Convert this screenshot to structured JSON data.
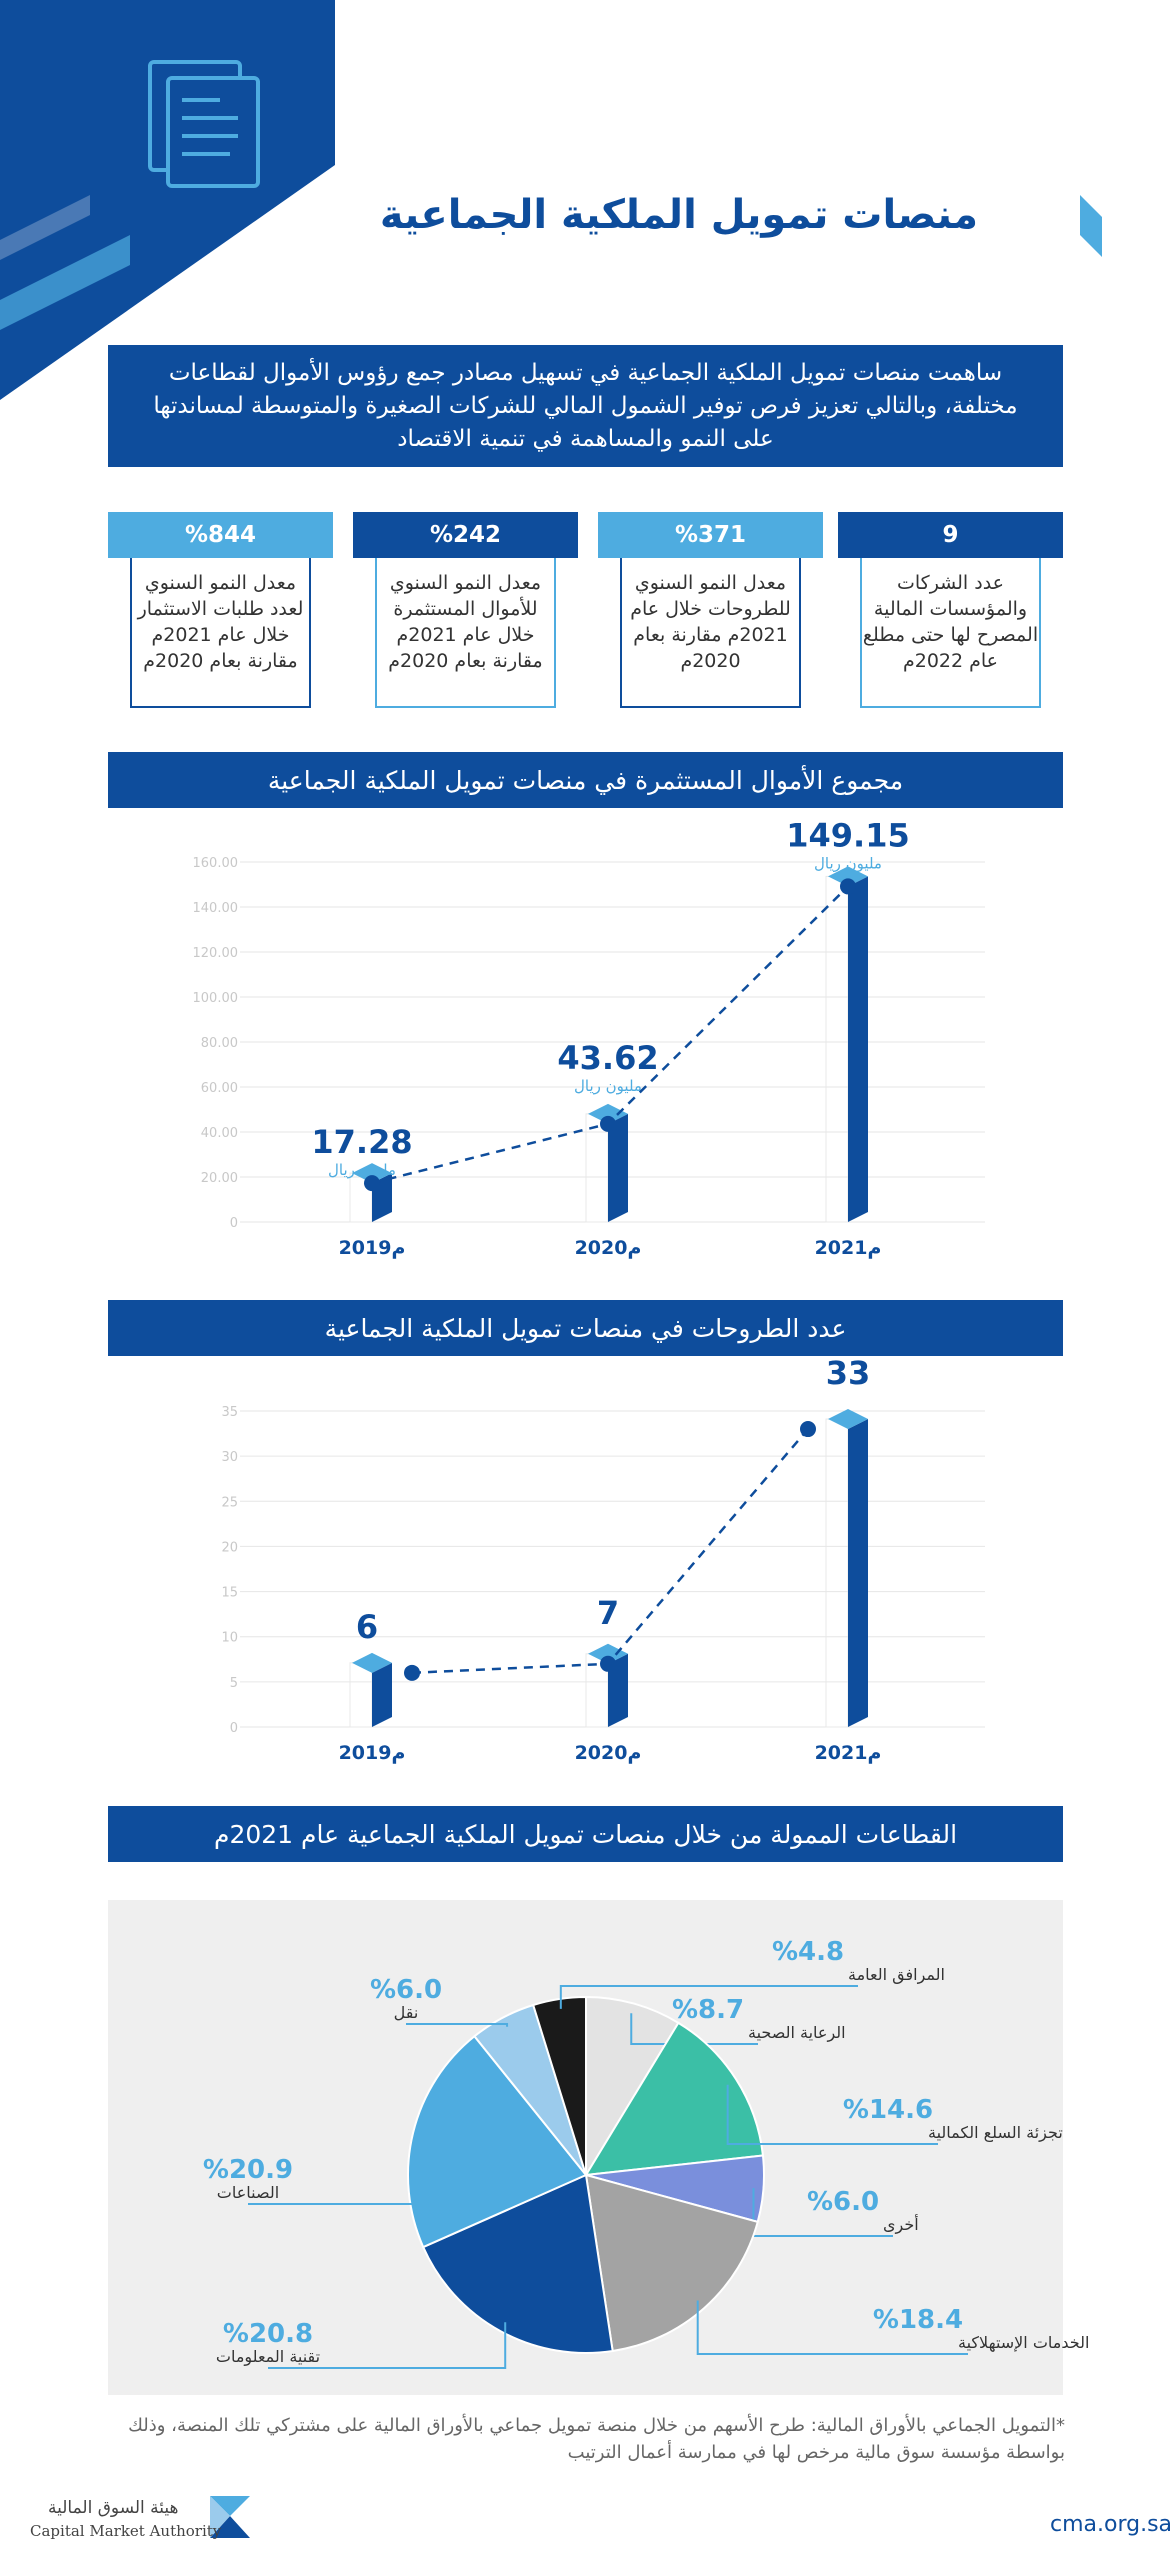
{
  "header": {
    "title": "منصات تمويل الملكية الجماعية",
    "intro": "ساهمت منصات تمويل الملكية الجماعية في تسهيل مصادر جمع رؤوس الأموال لقطاعات مختلفة، وبالتالي تعزيز فرص توفير الشمول المالي للشركات الصغيرة والمتوسطة لمساندتها على النمو والمساهمة في تنمية الاقتصاد"
  },
  "stats": [
    {
      "value": "9",
      "text": "عدد الشركات والمؤسسات المالية المصرح لها حتى مطلع عام 2022م",
      "color": "#0e4d9c"
    },
    {
      "value": "%371",
      "text": "معدل النمو السنوي للطروحات خلال عام 2021م مقارنة بعام 2020م",
      "color": "#4eace0"
    },
    {
      "value": "%242",
      "text": "معدل النمو السنوي للأموال المستثمرة خلال عام 2021م مقارنة بعام 2020م",
      "color": "#0e4d9c"
    },
    {
      "value": "%844",
      "text": "معدل النمو السنوي لعدد طلبات الاستثمار خلال عام 2021م مقارنة بعام 2020م",
      "color": "#4eace0"
    }
  ],
  "charts_titles": {
    "funds": "مجموع الأموال المستثمرة في منصات تمويل الملكية الجماعية",
    "offerings": "عدد الطروحات في منصات تمويل الملكية الجماعية",
    "sectors": "القطاعات الممولة من خلال منصات تمويل الملكية الجماعية عام 2021م"
  },
  "chart_data": [
    {
      "type": "bar",
      "title": "مجموع الأموال المستثمرة في منصات تمويل الملكية الجماعية",
      "categories": [
        "2019م",
        "2020م",
        "2021م"
      ],
      "values": [
        17.28,
        43.62,
        149.15
      ],
      "value_labels": [
        "17.28",
        "43.62",
        "149.15"
      ],
      "unit": "مليون ريال",
      "yticks": [
        "0",
        "20.00",
        "40.00",
        "60.00",
        "80.00",
        "100.00",
        "120.00",
        "140.00",
        "160.00"
      ],
      "ylim": [
        0,
        160
      ],
      "grid": true
    },
    {
      "type": "bar",
      "title": "عدد الطروحات في منصات تمويل الملكية الجماعية",
      "categories": [
        "2019م",
        "2020م",
        "2021م"
      ],
      "values": [
        6,
        7,
        33
      ],
      "value_labels": [
        "6",
        "7",
        "33"
      ],
      "yticks": [
        "0",
        "5",
        "10",
        "15",
        "20",
        "25",
        "30",
        "35"
      ],
      "ylim": [
        0,
        35
      ],
      "grid": true
    },
    {
      "type": "pie",
      "title": "القطاعات الممولة من خلال منصات تمويل الملكية الجماعية عام 2021م",
      "slices": [
        {
          "label": "الرعاية الصحية",
          "value": 8.7,
          "pct": "%8.7",
          "color": "#e3e3e3"
        },
        {
          "label": "تجزئة السلع الكمالية",
          "value": 14.6,
          "pct": "%14.6",
          "color": "#3bbfa6"
        },
        {
          "label": "أخرى",
          "value": 6.0,
          "pct": "%6.0",
          "color": "#7a8fdc"
        },
        {
          "label": "الخدمات الإستهلاكية",
          "value": 18.4,
          "pct": "%18.4",
          "color": "#a3a3a3"
        },
        {
          "label": "تقنية المعلومات",
          "value": 20.8,
          "pct": "%20.8",
          "color": "#0e4d9c"
        },
        {
          "label": "الصناعات",
          "value": 20.9,
          "pct": "%20.9",
          "color": "#4eace0"
        },
        {
          "label": "نقل",
          "value": 6.0,
          "pct": "%6.0",
          "color": "#9bcbec"
        },
        {
          "label": "المرافق العامة",
          "value": 4.8,
          "pct": "%4.8",
          "color": "#1a1a1a"
        }
      ]
    }
  ],
  "footer": {
    "footnote": "*التمويل الجماعي بالأوراق المالية: طرح الأسهم من خلال منصة تمويل جماعي بالأوراق المالية على مشتركي تلك المنصة، وذلك بواسطة مؤسسة سوق مالية مرخص لها في ممارسة أعمال الترتيب",
    "site": "cma.org.sa",
    "org_ar": "هيئة السوق المالية",
    "org_en": "Capital Market Authority"
  },
  "colors": {
    "primary": "#0e4d9c",
    "light": "#4eace0"
  }
}
